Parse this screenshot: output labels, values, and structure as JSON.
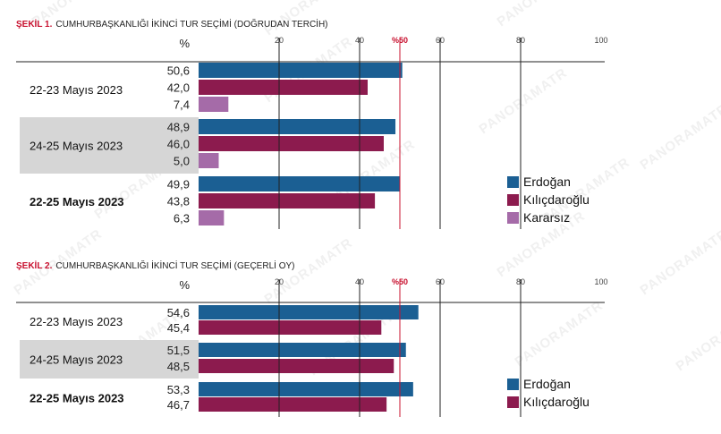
{
  "watermark": "PANORAMATR",
  "colors": {
    "erdogan": "#1B5F93",
    "kilicdaroglu": "#8C1B4E",
    "kararsiz": "#A56BA8",
    "half_line": "#C8102E",
    "highlight": "#D6D6D6",
    "title_accent": "#C8102E"
  },
  "chart_data": [
    {
      "type": "bar",
      "orientation": "horizontal",
      "title_prefix": "ŞEKİL 1.",
      "title": "CUMHURBAŞKANLIĞI İKİNCİ TUR SEÇİMİ (DOĞRUDAN TERCİH)",
      "unit_label": "%",
      "xlim": [
        0,
        100
      ],
      "ticks": [
        "20",
        "40",
        "%50",
        "60",
        "80",
        "100"
      ],
      "tick_values": [
        20,
        40,
        50,
        60,
        80,
        100
      ],
      "groups": [
        {
          "label": "22-23 Mayıs 2023",
          "bold": false,
          "highlight": false,
          "values": [
            50.6,
            42.0,
            7.4
          ],
          "value_labels": [
            "50,6",
            "42,0",
            "7,4"
          ]
        },
        {
          "label": "24-25 Mayıs 2023",
          "bold": false,
          "highlight": true,
          "values": [
            48.9,
            46.0,
            5.0
          ],
          "value_labels": [
            "48,9",
            "46,0",
            "5,0"
          ]
        },
        {
          "label": "22-25 Mayıs 2023",
          "bold": true,
          "highlight": false,
          "values": [
            49.9,
            43.8,
            6.3
          ],
          "value_labels": [
            "49,9",
            "43,8",
            "6,3"
          ]
        }
      ],
      "series": [
        {
          "name": "Erdoğan"
        },
        {
          "name": "Kılıçdaroğlu"
        },
        {
          "name": "Kararsız"
        }
      ],
      "legend": "right"
    },
    {
      "type": "bar",
      "orientation": "horizontal",
      "title_prefix": "ŞEKİL 2.",
      "title": "CUMHURBAŞKANLIĞI İKİNCİ TUR SEÇİMİ (GEÇERLİ OY)",
      "unit_label": "%",
      "xlim": [
        0,
        100
      ],
      "ticks": [
        "20",
        "40",
        "%50",
        "60",
        "80",
        "100"
      ],
      "tick_values": [
        20,
        40,
        50,
        60,
        80,
        100
      ],
      "groups": [
        {
          "label": "22-23 Mayıs 2023",
          "bold": false,
          "highlight": false,
          "values": [
            54.6,
            45.4
          ],
          "value_labels": [
            "54,6",
            "45,4"
          ]
        },
        {
          "label": "24-25 Mayıs 2023",
          "bold": false,
          "highlight": true,
          "values": [
            51.5,
            48.5
          ],
          "value_labels": [
            "51,5",
            "48,5"
          ]
        },
        {
          "label": "22-25 Mayıs 2023",
          "bold": true,
          "highlight": false,
          "values": [
            53.3,
            46.7
          ],
          "value_labels": [
            "53,3",
            "46,7"
          ]
        }
      ],
      "series": [
        {
          "name": "Erdoğan"
        },
        {
          "name": "Kılıçdaroğlu"
        }
      ],
      "legend": "right"
    }
  ]
}
